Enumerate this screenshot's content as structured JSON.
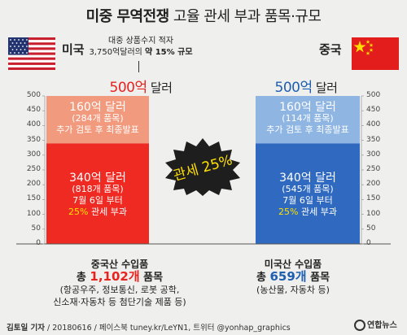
{
  "title": {
    "strong": "미중 무역전쟁",
    "rest": " 고율 관세 부과 품목·규모"
  },
  "countries": {
    "us": "미국",
    "cn": "중국"
  },
  "callout": {
    "line1": "대중 상품수지 적자",
    "line2_pre": "3,750억달러의 ",
    "line2_hl": "약 15% 규모"
  },
  "totals": {
    "us": {
      "num": "500억",
      "unit": " 달러"
    },
    "cn": {
      "num": "500억",
      "unit": " 달러"
    }
  },
  "badge": {
    "text": "관세 25%"
  },
  "chart_data": {
    "type": "bar",
    "stacked": true,
    "ylim": [
      0,
      500
    ],
    "yticks": [
      0,
      50,
      100,
      150,
      200,
      250,
      300,
      350,
      400,
      450,
      500
    ],
    "categories": [
      "미국",
      "중국"
    ],
    "series": [
      {
        "values": [
          340,
          340
        ],
        "colors": [
          "#ee2a22",
          "#2f6ac0"
        ]
      },
      {
        "values": [
          160,
          160
        ],
        "colors": [
          "#f29a7e",
          "#8fb5e3"
        ]
      }
    ],
    "labels": {
      "us_lower": {
        "line1": "340억 달러",
        "line2": "(818개 품목)",
        "line3": "7월 6일 부터",
        "line4_hl": "25%",
        "line4_rest": " 관세 부과"
      },
      "us_upper": {
        "line1": "160억 달러",
        "line2": "(284개 품목)",
        "line3": "추가 검토 후 최종발표"
      },
      "cn_lower": {
        "line1": "340억 달러",
        "line2": "(545개 품목)",
        "line3": "7월 6일 부터",
        "line4_hl": "25%",
        "line4_rest": " 관세 부과"
      },
      "cn_upper": {
        "line1": "160억 달러",
        "line2": "(114개 품목)",
        "line3": "추가 검토 후 최종발표"
      }
    }
  },
  "bottom": {
    "us": {
      "head": "중국산 수입품",
      "cnt_pre": "총 ",
      "cnt_num": "1,102개",
      "cnt_post": " 품목",
      "detail1": "(항공우주, 정보통신, 로봇 공학,",
      "detail2": "신소재·자동차 등 첨단기술 제품 등)"
    },
    "cn": {
      "head": "미국산 수입품",
      "cnt_pre": "총 ",
      "cnt_num": "659개",
      "cnt_post": " 품목",
      "detail1": "(농산물, 자동차 등)"
    }
  },
  "footer": {
    "author": "김토일 기자",
    "rest": " / 20180616 / 페이스북 tuney.kr/LeYN1, 트위터 @yonhap_graphics"
  },
  "logo": "연합뉴스",
  "colors": {
    "us_red": "#e8231f",
    "cn_blue": "#1f5fb0",
    "badge_yellow": "#ffe000"
  }
}
